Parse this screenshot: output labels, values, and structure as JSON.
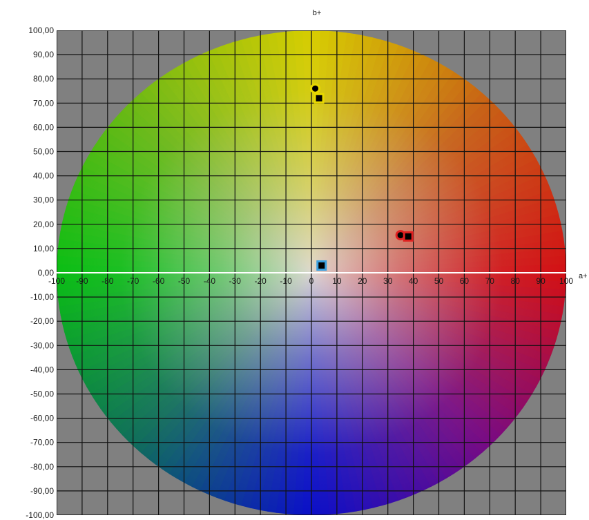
{
  "chart_data": {
    "type": "scatter",
    "title": "",
    "xlabel": "a+",
    "ylabel": "b+",
    "xlim": [
      -100,
      100
    ],
    "ylim": [
      -100,
      100
    ],
    "grid": true,
    "background_color": "#808080",
    "y_tick_labels": [
      "100,00",
      "90,00",
      "80,00",
      "70,00",
      "60,00",
      "50,00",
      "40,00",
      "30,00",
      "20,00",
      "10,00",
      "0,00",
      "-10,00",
      "-20,00",
      "-30,00",
      "-40,00",
      "-50,00",
      "-60,00",
      "-70,00",
      "-80,00",
      "-90,00",
      "-100,00"
    ],
    "x_tick_labels": [
      "-100",
      "-90",
      "-80",
      "-70",
      "-60",
      "-50",
      "-40",
      "-30",
      "-20",
      "-10",
      "0",
      "10",
      "20",
      "30",
      "40",
      "50",
      "60",
      "70",
      "80",
      "90",
      "100"
    ],
    "points": [
      {
        "a": 1.5,
        "b": 76,
        "shape": "circle",
        "outline": "#e8d800"
      },
      {
        "a": 3,
        "b": 72,
        "shape": "square",
        "outline": "#e8d800"
      },
      {
        "a": 35,
        "b": 15.5,
        "shape": "circle",
        "outline": "#e02020"
      },
      {
        "a": 38,
        "b": 15,
        "shape": "square",
        "outline": "#e02020"
      },
      {
        "a": 4,
        "b": 3,
        "shape": "square",
        "outline": "#3aa0e0"
      }
    ]
  }
}
